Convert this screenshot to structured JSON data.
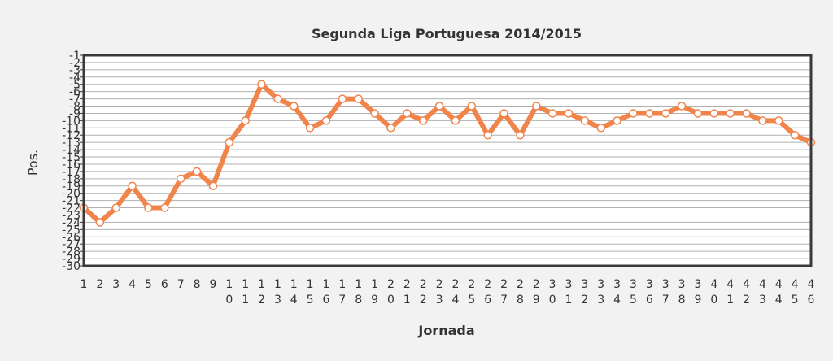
{
  "chart_data": {
    "type": "line",
    "title": "Segunda Liga Portuguesa 2014/2015",
    "xlabel": "Jornada",
    "ylabel": "Pos.",
    "x": [
      1,
      2,
      3,
      4,
      5,
      6,
      7,
      8,
      9,
      10,
      11,
      12,
      13,
      14,
      15,
      16,
      17,
      18,
      19,
      20,
      21,
      22,
      23,
      24,
      25,
      26,
      27,
      28,
      29,
      30,
      31,
      32,
      33,
      34,
      35,
      36,
      37,
      38,
      39,
      40,
      41,
      42,
      43,
      44,
      45,
      46
    ],
    "x_tick_labels": [
      [
        "1"
      ],
      [
        "2"
      ],
      [
        "3"
      ],
      [
        "4"
      ],
      [
        "5"
      ],
      [
        "6"
      ],
      [
        "7"
      ],
      [
        "8"
      ],
      [
        "9"
      ],
      [
        "1",
        "0"
      ],
      [
        "1",
        "1"
      ],
      [
        "1",
        "2"
      ],
      [
        "1",
        "3"
      ],
      [
        "1",
        "4"
      ],
      [
        "1",
        "5"
      ],
      [
        "1",
        "6"
      ],
      [
        "1",
        "7"
      ],
      [
        "1",
        "8"
      ],
      [
        "1",
        "9"
      ],
      [
        "2",
        "0"
      ],
      [
        "2",
        "1"
      ],
      [
        "2",
        "2"
      ],
      [
        "2",
        "3"
      ],
      [
        "2",
        "4"
      ],
      [
        "2",
        "5"
      ],
      [
        "2",
        "6"
      ],
      [
        "2",
        "7"
      ],
      [
        "2",
        "8"
      ],
      [
        "2",
        "9"
      ],
      [
        "3",
        "0"
      ],
      [
        "3",
        "1"
      ],
      [
        "3",
        "2"
      ],
      [
        "3",
        "3"
      ],
      [
        "3",
        "4"
      ],
      [
        "3",
        "5"
      ],
      [
        "3",
        "6"
      ],
      [
        "3",
        "7"
      ],
      [
        "3",
        "8"
      ],
      [
        "3",
        "9"
      ],
      [
        "4",
        "0"
      ],
      [
        "4",
        "1"
      ],
      [
        "4",
        "2"
      ],
      [
        "4",
        "3"
      ],
      [
        "4",
        "4"
      ],
      [
        "4",
        "5"
      ],
      [
        "4",
        "6"
      ]
    ],
    "series": [
      {
        "values": [
          -22,
          -24,
          -22,
          -19,
          -22,
          -22,
          -18,
          -17,
          -19,
          -13,
          -10,
          -5,
          -7,
          -8,
          -11,
          -10,
          -7,
          -7,
          -9,
          -11,
          -9,
          -10,
          -8,
          -10,
          -8,
          -12,
          -9,
          -12,
          -8,
          -9,
          -9,
          -10,
          -11,
          -10,
          -9,
          -9,
          -9,
          -8,
          -9,
          -9,
          -9,
          -9,
          -10,
          -10,
          -12,
          -13
        ]
      }
    ],
    "y_ticks": [
      -1,
      -2,
      -3,
      -4,
      -5,
      -6,
      -7,
      -8,
      -9,
      -10,
      -11,
      -12,
      -13,
      -14,
      -15,
      -16,
      -17,
      -18,
      -19,
      -20,
      -21,
      -22,
      -23,
      -24,
      -25,
      -26,
      -27,
      -28,
      -29,
      -30
    ],
    "y_tick_labels": [
      "-1",
      "-2",
      "-3",
      "-4",
      "-5",
      "-6",
      "-7",
      "-8",
      "-9",
      "-10",
      "-11",
      "-12",
      "-13",
      "-14",
      "-15",
      "-16",
      "-17",
      "-18",
      "-19",
      "-20",
      "-21",
      "-22",
      "-23",
      "-24",
      "-25",
      "-26",
      "-27",
      "-28",
      "-29",
      "-30"
    ],
    "ylim": [
      -30,
      -1
    ],
    "xlim": [
      1,
      46
    ],
    "grid": true,
    "line_color": "#f0844a",
    "marker_fill": "#ffffff"
  }
}
